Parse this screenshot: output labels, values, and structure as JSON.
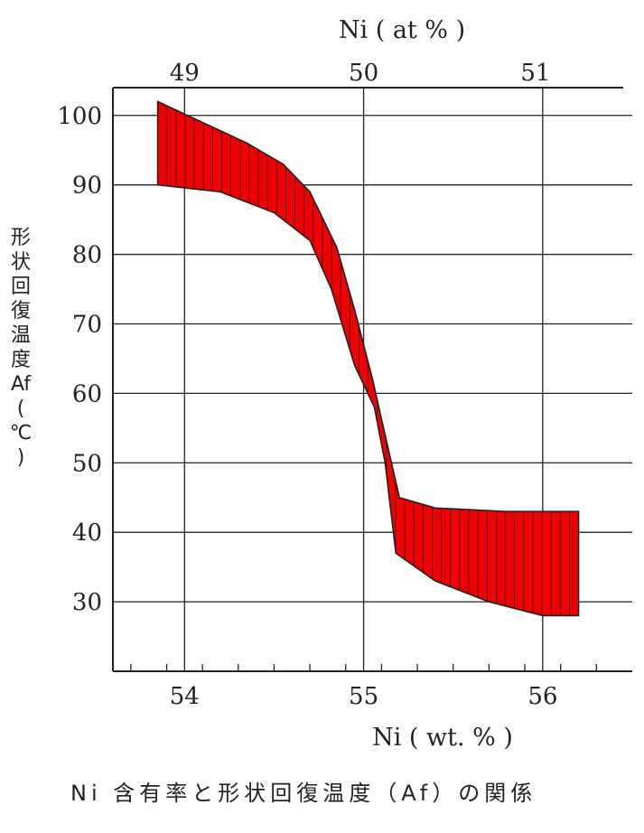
{
  "chart_data": {
    "type": "area",
    "title": "",
    "xlabel": "Ni ( wt. % )",
    "x2label": "Ni ( at % )",
    "ylabel_chars": [
      "形",
      "状",
      "回",
      "復",
      "温",
      "度",
      "Af",
      "(",
      "℃",
      ")"
    ],
    "xlim": [
      53.6,
      56.5
    ],
    "ylim": [
      20,
      104
    ],
    "x_ticks": [
      54,
      55,
      56
    ],
    "x_tick_labels": [
      "54",
      "55",
      "56"
    ],
    "x2_ticks": [
      54.0,
      55.0,
      55.96
    ],
    "x2_tick_labels": [
      "49",
      "50",
      "51"
    ],
    "y_ticks": [
      30,
      40,
      50,
      60,
      70,
      80,
      90,
      100
    ],
    "y_tick_labels": [
      "30",
      "40",
      "50",
      "60",
      "70",
      "80",
      "90",
      "100"
    ],
    "grid": true,
    "band_color": "#f00000",
    "series": [
      {
        "upper": [
          {
            "x": 53.85,
            "y": 102
          },
          {
            "x": 54.1,
            "y": 99
          },
          {
            "x": 54.35,
            "y": 96
          },
          {
            "x": 54.55,
            "y": 93
          },
          {
            "x": 54.7,
            "y": 89
          },
          {
            "x": 54.85,
            "y": 81
          },
          {
            "x": 54.95,
            "y": 72
          },
          {
            "x": 55.05,
            "y": 62
          },
          {
            "x": 55.12,
            "y": 54
          },
          {
            "x": 55.2,
            "y": 45
          },
          {
            "x": 55.4,
            "y": 43.5
          },
          {
            "x": 55.8,
            "y": 43
          },
          {
            "x": 56.2,
            "y": 43
          }
        ],
        "lower": [
          {
            "x": 53.85,
            "y": 90
          },
          {
            "x": 54.2,
            "y": 89
          },
          {
            "x": 54.5,
            "y": 86
          },
          {
            "x": 54.7,
            "y": 82
          },
          {
            "x": 54.82,
            "y": 75
          },
          {
            "x": 54.95,
            "y": 64
          },
          {
            "x": 55.06,
            "y": 58
          },
          {
            "x": 55.12,
            "y": 50
          },
          {
            "x": 55.18,
            "y": 37
          },
          {
            "x": 55.4,
            "y": 33
          },
          {
            "x": 55.7,
            "y": 30
          },
          {
            "x": 56.0,
            "y": 28
          },
          {
            "x": 56.2,
            "y": 28
          }
        ]
      }
    ]
  },
  "caption": "Ni 含有率と形状回復温度（Af）の関係"
}
